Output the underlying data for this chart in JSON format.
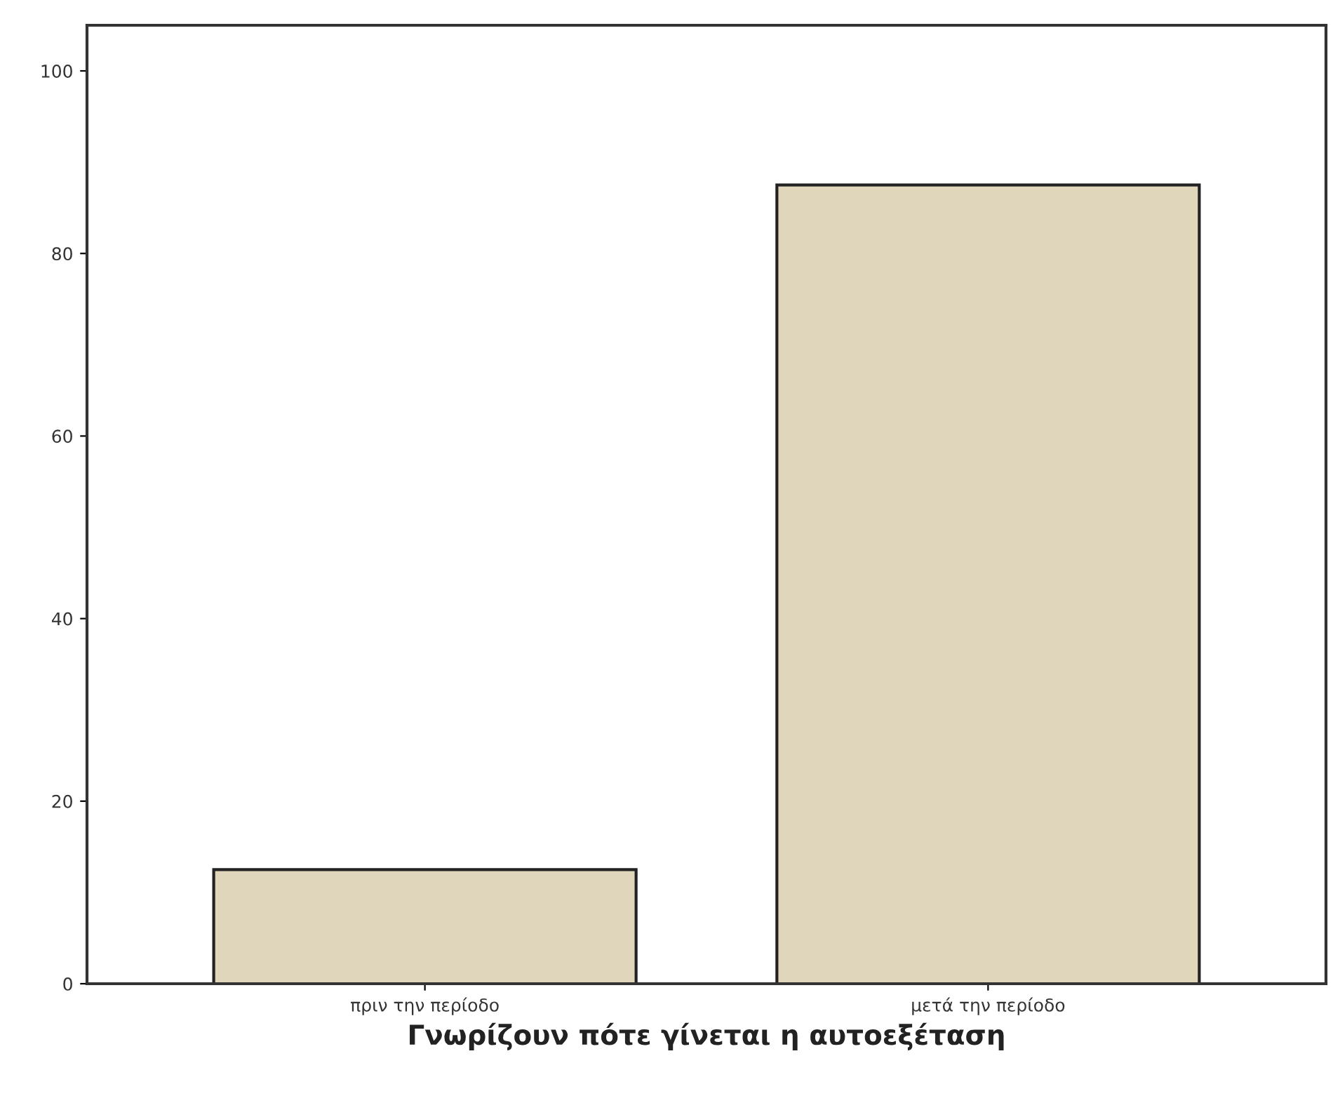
{
  "chart_data": {
    "type": "bar",
    "xlabel": "Γνωρίζουν πότε γίνεται η αυτοεξέταση",
    "categories": [
      "πριν την περίοδο",
      "μετά την περίοδο"
    ],
    "values": [
      12.5,
      87.5
    ],
    "color": "#e0d6bc",
    "ylim": [
      0,
      105
    ],
    "yticks": [
      0,
      20,
      40,
      60,
      80,
      100
    ],
    "grid": false,
    "legend": false
  }
}
